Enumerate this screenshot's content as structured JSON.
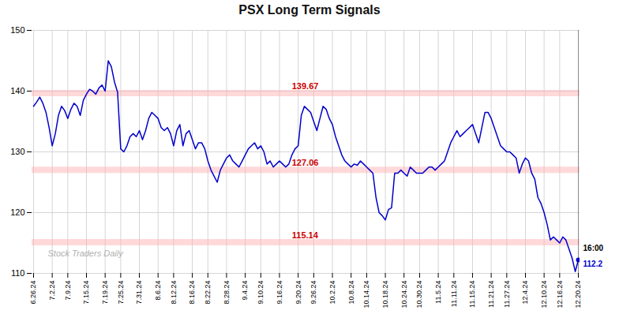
{
  "chart_data": {
    "type": "line",
    "title": "PSX Long Term Signals",
    "categories": [
      "6.26.24",
      null,
      null,
      null,
      null,
      null,
      "7.2.24",
      null,
      null,
      null,
      null,
      "7.9.24",
      null,
      null,
      null,
      null,
      null,
      "7.15.24",
      null,
      null,
      null,
      null,
      null,
      "7.19.24",
      null,
      null,
      null,
      null,
      "7.25.24",
      null,
      null,
      null,
      null,
      null,
      "7.31.24",
      null,
      null,
      null,
      null,
      null,
      "8.6.24",
      null,
      null,
      null,
      null,
      "8.12.24",
      null,
      null,
      null,
      null,
      null,
      "8.16.24",
      null,
      null,
      null,
      null,
      "8.22.24",
      null,
      null,
      null,
      null,
      null,
      "8.28.24",
      null,
      null,
      null,
      null,
      null,
      "9.4.24",
      null,
      null,
      null,
      null,
      "9.10.24",
      null,
      null,
      null,
      null,
      null,
      "9.16.24",
      null,
      null,
      null,
      null,
      null,
      "9.20.24",
      null,
      null,
      null,
      null,
      "9.26.24",
      null,
      null,
      null,
      null,
      null,
      "10.2.24",
      null,
      null,
      null,
      null,
      null,
      "10.8.24",
      null,
      null,
      null,
      null,
      "10.14.24",
      null,
      null,
      null,
      null,
      null,
      "10.18.24",
      null,
      null,
      null,
      null,
      null,
      "10.24.24",
      null,
      null,
      null,
      null,
      "10.30.24",
      null,
      null,
      null,
      null,
      null,
      "11.5.24",
      null,
      null,
      null,
      null,
      "11.11.24",
      null,
      null,
      null,
      null,
      null,
      "11.15.24",
      null,
      null,
      null,
      null,
      null,
      "11.21.24",
      null,
      null,
      null,
      null,
      "11.27.24",
      null,
      null,
      null,
      null,
      null,
      "12.4.24",
      null,
      null,
      null,
      null,
      null,
      "12.10.24",
      null,
      null,
      null,
      null,
      "12.16.24",
      null,
      null,
      null,
      null,
      null,
      "12.20.24"
    ],
    "values": [
      137.5,
      138.2,
      139.0,
      138.0,
      136.5,
      134.0,
      131.0,
      133.0,
      136.0,
      137.5,
      136.8,
      135.5,
      137.0,
      138.0,
      137.5,
      136.0,
      138.5,
      139.5,
      140.3,
      140.0,
      139.5,
      140.5,
      141.0,
      140.0,
      145.0,
      144.0,
      141.5,
      139.8,
      130.5,
      130.0,
      131.0,
      132.5,
      133.0,
      132.5,
      133.5,
      132.0,
      133.5,
      135.5,
      136.5,
      136.0,
      135.5,
      134.0,
      133.5,
      134.0,
      133.0,
      131.0,
      133.5,
      134.5,
      131.0,
      133.0,
      133.5,
      132.0,
      130.5,
      131.5,
      131.5,
      130.5,
      128.5,
      127.0,
      126.0,
      125.0,
      127.0,
      128.0,
      129.0,
      129.5,
      128.5,
      128.0,
      127.5,
      128.5,
      129.5,
      130.5,
      131.0,
      131.5,
      130.5,
      131.0,
      130.0,
      128.0,
      128.5,
      127.5,
      128.0,
      128.5,
      128.0,
      127.5,
      128.0,
      129.5,
      130.5,
      131.0,
      136.0,
      137.5,
      137.0,
      136.5,
      135.0,
      133.5,
      135.5,
      137.5,
      137.0,
      135.5,
      134.5,
      132.5,
      131.0,
      129.5,
      128.5,
      128.0,
      127.5,
      128.0,
      127.8,
      128.5,
      128.0,
      127.5,
      127.0,
      126.5,
      122.5,
      120.0,
      119.5,
      118.8,
      120.5,
      120.8,
      126.5,
      126.5,
      127.0,
      126.5,
      126.0,
      127.5,
      127.0,
      126.5,
      126.5,
      126.5,
      127.0,
      127.5,
      127.5,
      127.0,
      127.5,
      128.0,
      128.5,
      130.0,
      131.5,
      132.5,
      133.5,
      132.5,
      133.0,
      133.5,
      134.0,
      134.5,
      133.0,
      131.5,
      134.0,
      136.5,
      136.5,
      135.5,
      134.0,
      132.5,
      131.0,
      130.5,
      130.0,
      130.0,
      129.5,
      129.0,
      126.5,
      128.0,
      129.0,
      128.5,
      126.5,
      125.5,
      122.5,
      121.5,
      120.0,
      118.0,
      115.5,
      116.0,
      115.5,
      115.0,
      116.0,
      115.5,
      114.0,
      112.5,
      110.3,
      112.2
    ],
    "color": "#0000cc",
    "ylim": [
      110,
      150
    ],
    "yticks": [
      110,
      120,
      130,
      140,
      150
    ],
    "grid": true,
    "hlines": [
      {
        "value": 139.67,
        "label": "139.67"
      },
      {
        "value": 127.06,
        "label": "127.06"
      },
      {
        "value": 115.14,
        "label": "115.14"
      }
    ],
    "hline_color": "#ffb3b3",
    "hline_label_color": "#cc0000",
    "vline_color": "#888888",
    "dot_color": "#0000cc",
    "annotations": [
      {
        "text": "16:00",
        "color": "#000000"
      },
      {
        "text": "112.2",
        "color": "#0000cc"
      }
    ],
    "watermark": "Stock Traders Daily",
    "watermark_color": "#b0b0b0"
  }
}
